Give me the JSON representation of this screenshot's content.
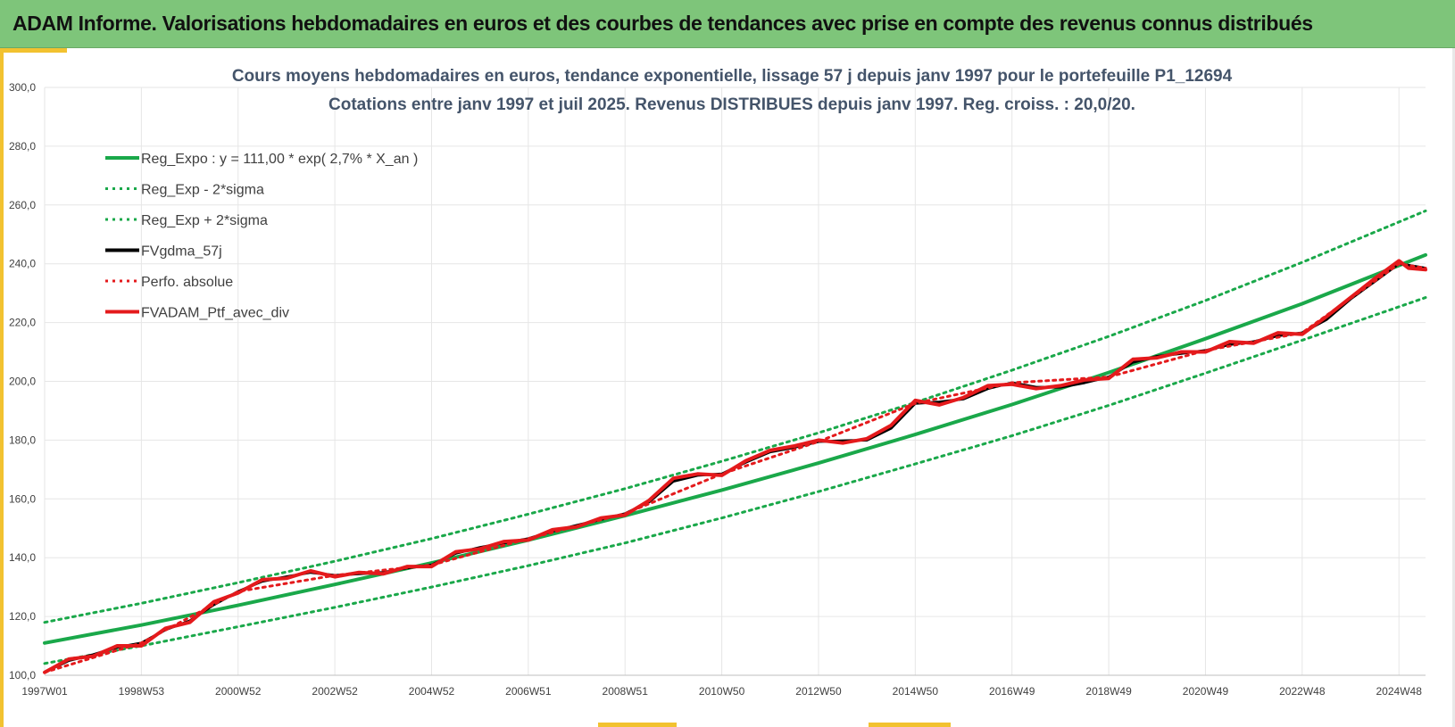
{
  "header": {
    "title": "ADAM Informe. Valorisations hebdomadaires en euros et des courbes de tendances avec prise en compte des revenus connus distribués"
  },
  "colors": {
    "header_bg": "#7ec57a",
    "accent": "#f2c230",
    "trend": "#1aa84a",
    "perf": "#e41a1c",
    "smooth": "#000000",
    "grid": "#e6e6e6"
  },
  "chart_data": {
    "type": "line",
    "title": "Cours moyens hebdomadaires  en euros, tendance exponentielle, lissage 57 j depuis janv 1997 pour le portefeuille P1_12694",
    "subtitle": "Cotations  entre janv 1997 et juil 2025. Revenus DISTRIBUES depuis janv 1997. Reg. croiss. : 20,0/20.",
    "xlabel": "",
    "ylabel": "",
    "ylim": [
      100,
      300
    ],
    "y_ticks": [
      "100,0",
      "120,0",
      "140,0",
      "160,0",
      "180,0",
      "200,0",
      "220,0",
      "240,0",
      "260,0",
      "280,0",
      "300,0"
    ],
    "x_range": [
      1997.0,
      2025.55
    ],
    "x_ticks": [
      {
        "label": "1997W01",
        "year": 1997.0
      },
      {
        "label": "1998W53",
        "year": 1999.0
      },
      {
        "label": "2000W52",
        "year": 2001.0
      },
      {
        "label": "2002W52",
        "year": 2003.0
      },
      {
        "label": "2004W52",
        "year": 2005.0
      },
      {
        "label": "2006W51",
        "year": 2007.0
      },
      {
        "label": "2008W51",
        "year": 2009.0
      },
      {
        "label": "2010W50",
        "year": 2011.0
      },
      {
        "label": "2012W50",
        "year": 2013.0
      },
      {
        "label": "2014W50",
        "year": 2015.0
      },
      {
        "label": "2016W49",
        "year": 2017.0
      },
      {
        "label": "2018W49",
        "year": 2019.0
      },
      {
        "label": "2020W49",
        "year": 2021.0
      },
      {
        "label": "2022W48",
        "year": 2023.0
      },
      {
        "label": "2024W48",
        "year": 2025.0
      }
    ],
    "grid": true,
    "legend_position": "top-left",
    "series": [
      {
        "name": "Reg_Expo : y = 111,00 * exp( 2,7% *  X_an )",
        "style": "solid",
        "color": "#1aa84a",
        "x": [
          1997.0,
          1999.0,
          2001.0,
          2003.0,
          2005.0,
          2007.0,
          2009.0,
          2011.0,
          2013.0,
          2015.0,
          2017.0,
          2019.0,
          2021.0,
          2023.0,
          2025.55
        ],
        "values": [
          111.0,
          117.1,
          123.8,
          130.9,
          138.2,
          146.0,
          154.3,
          163.0,
          172.2,
          181.9,
          192.1,
          203.0,
          214.5,
          226.4,
          243.0
        ]
      },
      {
        "name": "Reg_Exp - 2*sigma",
        "style": "dotted",
        "color": "#1aa84a",
        "x": [
          1997.0,
          1999.0,
          2001.0,
          2003.0,
          2005.0,
          2007.0,
          2009.0,
          2011.0,
          2013.0,
          2015.0,
          2017.0,
          2019.0,
          2021.0,
          2023.0,
          2025.55
        ],
        "values": [
          104.0,
          110.0,
          116.5,
          123.1,
          130.0,
          137.3,
          145.0,
          153.5,
          162.5,
          171.9,
          181.5,
          191.8,
          202.8,
          214.0,
          228.5
        ]
      },
      {
        "name": "Reg_Exp + 2*sigma",
        "style": "dotted",
        "color": "#1aa84a",
        "x": [
          1997.0,
          1999.0,
          2001.0,
          2003.0,
          2005.0,
          2007.0,
          2009.0,
          2011.0,
          2013.0,
          2015.0,
          2017.0,
          2019.0,
          2021.0,
          2023.0,
          2025.55
        ],
        "values": [
          118.0,
          124.5,
          131.5,
          138.8,
          146.5,
          154.8,
          163.5,
          172.8,
          182.5,
          192.8,
          203.8,
          215.3,
          227.5,
          240.5,
          258.0
        ]
      },
      {
        "name": "FVgdma_57j",
        "style": "solid",
        "color": "#000000",
        "x": [
          1997.0,
          1997.5,
          1998.0,
          1998.5,
          1999.0,
          1999.5,
          2000.0,
          2000.5,
          2001.0,
          2001.5,
          2002.0,
          2002.5,
          2003.0,
          2003.5,
          2004.0,
          2004.5,
          2005.0,
          2005.5,
          2006.0,
          2006.5,
          2007.0,
          2007.5,
          2008.0,
          2008.5,
          2009.0,
          2009.5,
          2010.0,
          2010.5,
          2011.0,
          2011.5,
          2012.0,
          2012.5,
          2013.0,
          2013.5,
          2014.0,
          2014.5,
          2015.0,
          2015.5,
          2016.0,
          2016.5,
          2017.0,
          2017.5,
          2018.0,
          2018.5,
          2019.0,
          2019.5,
          2020.0,
          2020.5,
          2021.0,
          2021.5,
          2022.0,
          2022.5,
          2023.0,
          2023.5,
          2024.0,
          2024.5,
          2025.0,
          2025.2,
          2025.55
        ],
        "values": [
          101.0,
          105.0,
          107.0,
          109.5,
          111.0,
          115.5,
          118.5,
          124.0,
          128.5,
          132.0,
          133.5,
          135.0,
          134.0,
          134.5,
          135.0,
          136.5,
          137.5,
          141.5,
          143.5,
          145.0,
          146.5,
          149.0,
          151.0,
          153.0,
          155.0,
          159.0,
          166.0,
          168.0,
          168.5,
          172.5,
          176.0,
          177.5,
          179.5,
          179.8,
          180.0,
          184.0,
          192.5,
          193.0,
          194.0,
          197.5,
          199.5,
          198.0,
          198.0,
          199.5,
          201.5,
          206.5,
          208.5,
          209.5,
          210.5,
          212.5,
          213.5,
          215.5,
          216.5,
          221.0,
          228.0,
          234.0,
          240.0,
          239.5,
          238.5
        ]
      },
      {
        "name": "Perfo. absolue",
        "style": "dotted",
        "color": "#e41a1c",
        "x": [
          1997.0,
          1999.0,
          2001.0,
          2003.0,
          2005.0,
          2007.0,
          2009.0,
          2011.0,
          2013.0,
          2015.0,
          2017.0,
          2019.0,
          2021.0,
          2023.0,
          2025.0,
          2025.55
        ],
        "values": [
          101.0,
          111.0,
          128.5,
          134.0,
          137.5,
          146.5,
          155.0,
          168.5,
          179.5,
          192.5,
          199.5,
          201.5,
          210.5,
          216.5,
          240.0,
          238.5
        ]
      },
      {
        "name": "FVADAM_Ptf_avec_div",
        "style": "solid-thick",
        "color": "#e41a1c",
        "x": [
          1997.0,
          1997.5,
          1998.0,
          1998.5,
          1999.0,
          1999.5,
          2000.0,
          2000.5,
          2001.0,
          2001.5,
          2002.0,
          2002.5,
          2003.0,
          2003.5,
          2004.0,
          2004.5,
          2005.0,
          2005.5,
          2006.0,
          2006.5,
          2007.0,
          2007.5,
          2008.0,
          2008.5,
          2009.0,
          2009.5,
          2010.0,
          2010.5,
          2011.0,
          2011.5,
          2012.0,
          2012.5,
          2013.0,
          2013.5,
          2014.0,
          2014.5,
          2015.0,
          2015.5,
          2016.0,
          2016.5,
          2017.0,
          2017.5,
          2018.0,
          2018.5,
          2019.0,
          2019.5,
          2020.0,
          2020.5,
          2021.0,
          2021.5,
          2022.0,
          2022.5,
          2023.0,
          2023.5,
          2024.0,
          2024.5,
          2025.0,
          2025.2,
          2025.55
        ],
        "values": [
          101.0,
          105.5,
          106.5,
          110.0,
          110.0,
          116.0,
          118.0,
          125.0,
          128.0,
          132.5,
          133.0,
          135.5,
          133.5,
          135.0,
          134.5,
          137.0,
          137.0,
          142.0,
          143.0,
          145.5,
          146.0,
          149.5,
          150.5,
          153.5,
          154.5,
          159.5,
          167.0,
          168.5,
          168.0,
          173.0,
          176.5,
          178.0,
          180.0,
          179.0,
          180.5,
          185.0,
          193.5,
          192.0,
          194.5,
          198.5,
          199.0,
          197.5,
          198.5,
          200.5,
          201.0,
          207.5,
          208.0,
          210.0,
          210.0,
          213.5,
          213.0,
          216.5,
          216.0,
          222.0,
          228.5,
          235.0,
          241.0,
          238.5,
          238.0
        ]
      }
    ]
  }
}
